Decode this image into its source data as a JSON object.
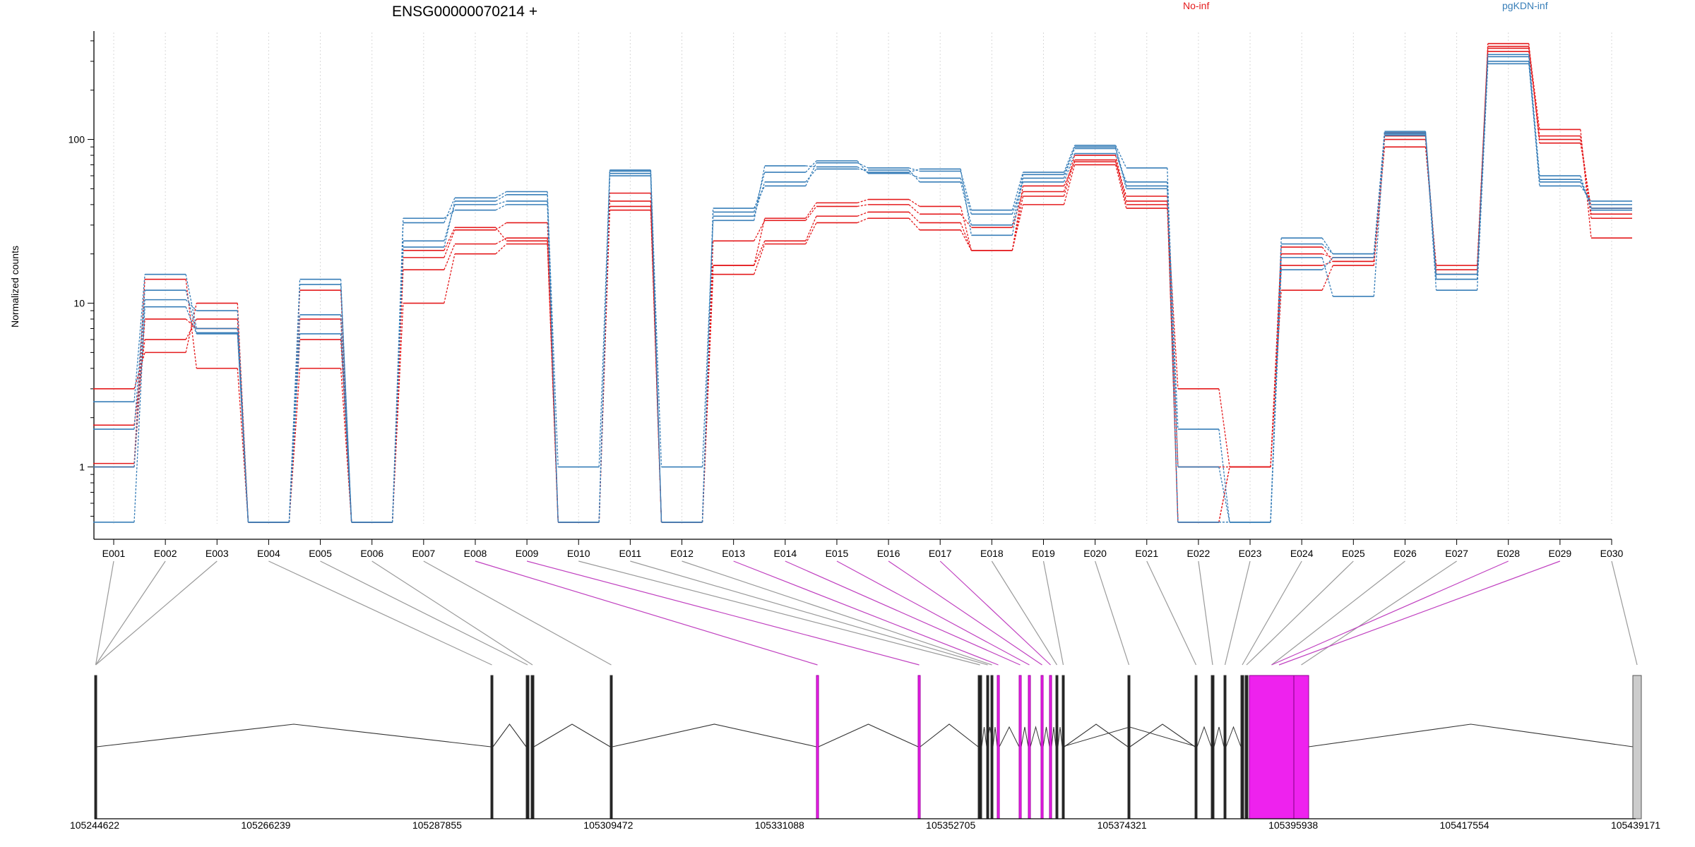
{
  "chart_data": {
    "type": "line",
    "title": "ENSG00000070214 +",
    "ylabel": "Normalized counts",
    "yscale": "log",
    "ylim": [
      0.45,
      450
    ],
    "yticks": [
      "1",
      "10",
      "100"
    ],
    "categories": [
      "E001",
      "E002",
      "E003",
      "E004",
      "E005",
      "E006",
      "E007",
      "E008",
      "E009",
      "E010",
      "E011",
      "E012",
      "E013",
      "E014",
      "E015",
      "E016",
      "E017",
      "E018",
      "E019",
      "E020",
      "E021",
      "E022",
      "E023",
      "E024",
      "E025",
      "E026",
      "E027",
      "E028",
      "E029",
      "E030"
    ],
    "groups": [
      {
        "name": "No-inf",
        "color": "#e41a1c"
      },
      {
        "name": "pgKDN-inf",
        "color": "#377eb8"
      }
    ],
    "series": [
      {
        "group": "No-inf",
        "values": [
          3.0,
          5.0,
          10.0,
          0.46,
          4.0,
          0.46,
          10.0,
          20.0,
          23.0,
          0.46,
          37.0,
          0.46,
          15.0,
          23.0,
          31.0,
          33.0,
          28.0,
          21.0,
          40.0,
          70.0,
          38.0,
          3.0,
          1.0,
          12.0,
          17.0,
          90.0,
          17.0,
          370.0,
          115.0,
          25.0
        ]
      },
      {
        "group": "No-inf",
        "values": [
          1.8,
          6.0,
          8.0,
          0.46,
          8.0,
          0.46,
          16.0,
          23.0,
          25.0,
          0.46,
          39.0,
          0.46,
          17.0,
          24.0,
          34.0,
          36.0,
          31.0,
          21.0,
          45.0,
          75.0,
          40.0,
          1.0,
          1.0,
          17.0,
          18.0,
          100.0,
          15.0,
          360.0,
          100.0,
          33.0
        ]
      },
      {
        "group": "No-inf",
        "values": [
          1.0,
          8.0,
          7.0,
          0.46,
          6.0,
          0.46,
          19.0,
          28.0,
          31.0,
          0.46,
          42.0,
          0.46,
          24.0,
          32.0,
          39.0,
          40.0,
          35.0,
          29.0,
          48.0,
          80.0,
          42.0,
          0.46,
          1.0,
          20.0,
          19.0,
          105.0,
          16.0,
          345.0,
          105.0,
          35.0
        ]
      },
      {
        "group": "No-inf",
        "values": [
          1.05,
          14.0,
          4.0,
          0.46,
          12.0,
          0.46,
          21.0,
          29.0,
          24.0,
          0.46,
          47.0,
          0.46,
          17.0,
          33.0,
          41.0,
          43.0,
          39.0,
          21.0,
          52.0,
          73.0,
          45.0,
          0.46,
          1.0,
          22.0,
          18.0,
          110.0,
          15.0,
          385.0,
          95.0,
          38.0
        ]
      },
      {
        "group": "pgKDN-inf",
        "values": [
          0.46,
          9.5,
          6.5,
          0.46,
          6.5,
          0.46,
          24.0,
          40.0,
          42.0,
          0.46,
          62.0,
          0.46,
          34.0,
          55.0,
          66.0,
          65.0,
          55.0,
          30.0,
          61.0,
          88.0,
          50.0,
          0.46,
          0.46,
          19.0,
          11.0,
          108.0,
          12.0,
          290.0,
          55.0,
          40.0
        ]
      },
      {
        "group": "pgKDN-inf",
        "values": [
          1.0,
          10.5,
          9.0,
          0.46,
          8.5,
          0.46,
          31.0,
          44.0,
          48.0,
          0.46,
          60.0,
          0.46,
          36.0,
          63.0,
          74.0,
          62.0,
          58.0,
          35.0,
          55.0,
          82.0,
          55.0,
          0.46,
          0.46,
          25.0,
          20.0,
          112.0,
          14.0,
          320.0,
          52.0,
          42.0
        ]
      },
      {
        "group": "pgKDN-inf",
        "values": [
          2.5,
          15.0,
          7.0,
          0.46,
          14.0,
          0.46,
          33.0,
          37.0,
          40.0,
          0.46,
          64.0,
          0.46,
          38.0,
          52.0,
          72.0,
          67.0,
          64.0,
          37.0,
          63.0,
          92.0,
          67.0,
          1.0,
          0.46,
          16.0,
          19.0,
          110.0,
          14.0,
          300.0,
          57.0,
          38.0
        ]
      },
      {
        "group": "pgKDN-inf",
        "values": [
          1.7,
          12.0,
          6.6,
          0.46,
          13.0,
          0.46,
          22.0,
          42.0,
          46.0,
          1.0,
          65.0,
          1.0,
          32.0,
          69.0,
          68.0,
          63.0,
          66.0,
          26.0,
          58.0,
          90.0,
          52.0,
          1.7,
          0.46,
          23.0,
          20.0,
          106.0,
          15.0,
          330.0,
          60.0,
          37.0
        ]
      }
    ],
    "gene_axis": {
      "tick_labels": [
        "105244622",
        "105266239",
        "105287855",
        "105309472",
        "105331088",
        "105352705",
        "105374321",
        "105395938",
        "105417554",
        "105439171"
      ],
      "highlight_color": "#ee22ee",
      "highlighted_exons": [
        "E008",
        "E009",
        "E013",
        "E014",
        "E015",
        "E016",
        "E017",
        "E028",
        "E029"
      ]
    }
  }
}
